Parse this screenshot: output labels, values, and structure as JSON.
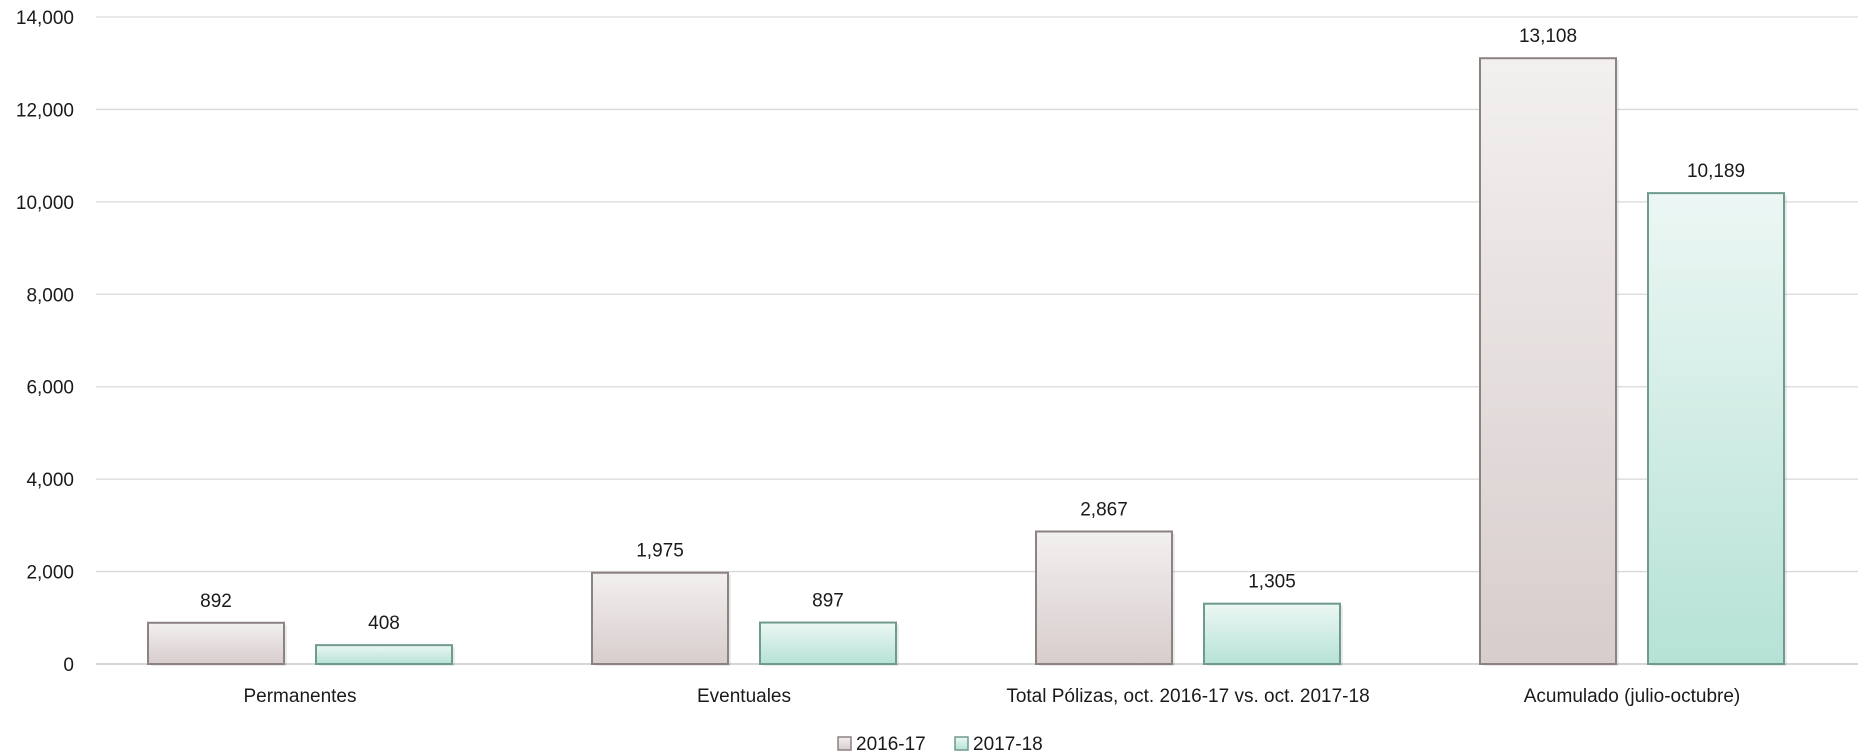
{
  "chart_data": {
    "type": "bar",
    "categories": [
      "Permanentes",
      "Eventuales",
      "Total Pólizas, oct. 2016-17  vs. oct. 2017-18",
      "Acumulado (julio-octubre)"
    ],
    "series": [
      {
        "name": "2016-17",
        "values": [
          892,
          1975,
          2867,
          13108
        ],
        "labels": [
          "892",
          "1,975",
          "2,867",
          "13,108"
        ]
      },
      {
        "name": "2017-18",
        "values": [
          408,
          897,
          1305,
          10189
        ],
        "labels": [
          "408",
          "897",
          "1,305",
          "10,189"
        ]
      }
    ],
    "ylim": [
      0,
      14000
    ],
    "yticks": [
      0,
      2000,
      4000,
      6000,
      8000,
      10000,
      12000,
      14000
    ],
    "ytick_labels": [
      "0",
      "2,000",
      "4,000",
      "6,000",
      "8,000",
      "10,000",
      "12,000",
      "14,000"
    ],
    "grid": true,
    "legend_position": "bottom-center",
    "colors": {
      "series_2016_17_top": "#f2f0ef",
      "series_2016_17_bottom": "#d8cdcd",
      "series_2016_17_border": "#8c8282",
      "series_2017_18_top": "#ecf7f4",
      "series_2017_18_bottom": "#b6e2d6",
      "series_2017_18_border": "#6f9a90"
    }
  }
}
